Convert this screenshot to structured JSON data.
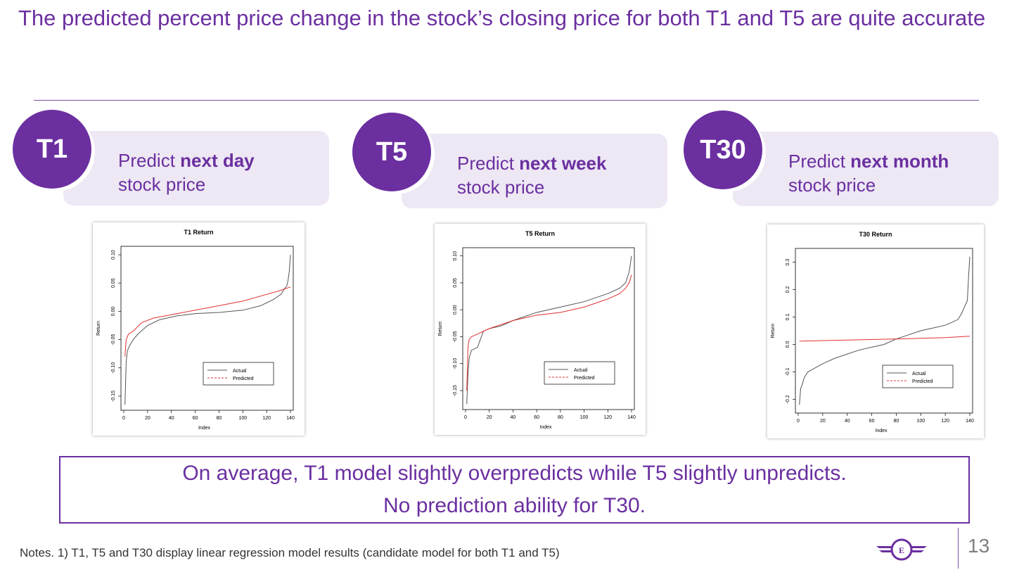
{
  "title": "The predicted percent price change in the stock’s closing price for both T1 and T5 are quite accurate",
  "cards": [
    {
      "badge": "T1",
      "prefix": "Predict ",
      "bold": "next day",
      "rest": "stock price"
    },
    {
      "badge": "T5",
      "prefix": "Predict ",
      "bold": "next week",
      "rest": "stock price"
    },
    {
      "badge": "T30",
      "prefix": "Predict ",
      "bold": "next month",
      "rest": "stock price"
    }
  ],
  "chart_data": [
    {
      "type": "line",
      "title": "T1 Return",
      "xlabel": "Index",
      "ylabel": "Return",
      "xlim": [
        0,
        140
      ],
      "ylim": [
        -0.17,
        0.11
      ],
      "xticks": [
        0,
        20,
        40,
        60,
        80,
        100,
        120,
        140
      ],
      "yticks": [
        -0.15,
        -0.1,
        -0.05,
        0.0,
        0.05,
        0.1
      ],
      "ytick_labels": [
        "-0.15",
        "-0.10",
        "-0.05",
        "0.00",
        "0.05",
        "0.10"
      ],
      "legend": [
        "Actual",
        "Predicted"
      ],
      "legend_position": "bottom-right",
      "series": [
        {
          "name": "Actual",
          "color": "#555555",
          "dash": false,
          "x": [
            1,
            2,
            3,
            5,
            8,
            12,
            20,
            30,
            45,
            60,
            80,
            100,
            115,
            125,
            132,
            135,
            137,
            138,
            139,
            140
          ],
          "y": [
            -0.165,
            -0.09,
            -0.07,
            -0.06,
            -0.05,
            -0.04,
            -0.025,
            -0.015,
            -0.008,
            -0.004,
            -0.002,
            0.002,
            0.01,
            0.02,
            0.03,
            0.04,
            0.045,
            0.055,
            0.07,
            0.1
          ]
        },
        {
          "name": "Predicted",
          "color": "#e03030",
          "dash": true,
          "x": [
            1,
            2,
            4,
            8,
            15,
            25,
            40,
            60,
            80,
            100,
            120,
            130,
            140
          ],
          "y": [
            -0.08,
            -0.05,
            -0.04,
            -0.035,
            -0.02,
            -0.012,
            -0.006,
            0.002,
            0.01,
            0.018,
            0.03,
            0.036,
            0.043
          ]
        }
      ]
    },
    {
      "type": "line",
      "title": "T5 Return",
      "xlabel": "Index",
      "ylabel": "Return",
      "xlim": [
        0,
        140
      ],
      "ylim": [
        -0.18,
        0.11
      ],
      "xticks": [
        0,
        20,
        40,
        60,
        80,
        100,
        120,
        140
      ],
      "yticks": [
        -0.15,
        -0.1,
        -0.05,
        0.0,
        0.05,
        0.1
      ],
      "ytick_labels": [
        "-0.15",
        "-0.10",
        "-0.05",
        "0.00",
        "0.05",
        "0.10"
      ],
      "legend": [
        "Actual",
        "Predicted"
      ],
      "legend_position": "bottom-right",
      "series": [
        {
          "name": "Actual",
          "color": "#555555",
          "dash": false,
          "x": [
            1,
            2,
            3,
            5,
            10,
            15,
            20,
            30,
            40,
            60,
            80,
            100,
            120,
            130,
            135,
            138,
            140
          ],
          "y": [
            -0.175,
            -0.12,
            -0.09,
            -0.075,
            -0.07,
            -0.04,
            -0.035,
            -0.03,
            -0.02,
            -0.005,
            0.005,
            0.015,
            0.03,
            0.04,
            0.05,
            0.07,
            0.1
          ]
        },
        {
          "name": "Predicted",
          "color": "#e03030",
          "dash": true,
          "x": [
            1,
            2,
            3,
            5,
            10,
            20,
            40,
            60,
            80,
            100,
            120,
            130,
            135,
            138,
            140
          ],
          "y": [
            -0.15,
            -0.07,
            -0.055,
            -0.05,
            -0.045,
            -0.035,
            -0.02,
            -0.01,
            -0.005,
            0.005,
            0.02,
            0.03,
            0.04,
            0.05,
            0.065
          ]
        }
      ]
    },
    {
      "type": "line",
      "title": "T30 Return",
      "xlabel": "Index",
      "ylabel": "Return",
      "xlim": [
        0,
        140
      ],
      "ylim": [
        -0.24,
        0.34
      ],
      "xticks": [
        0,
        20,
        40,
        60,
        80,
        100,
        120,
        140
      ],
      "yticks": [
        -0.2,
        -0.1,
        0.0,
        0.1,
        0.2,
        0.3
      ],
      "ytick_labels": [
        "-0.2",
        "-0.1",
        "0.0",
        "0.1",
        "0.2",
        "0.3"
      ],
      "legend": [
        "Actual",
        "Predicted"
      ],
      "legend_position": "bottom-right",
      "series": [
        {
          "name": "Actual",
          "color": "#555555",
          "dash": false,
          "x": [
            1,
            2,
            3,
            5,
            8,
            12,
            20,
            30,
            40,
            50,
            60,
            70,
            80,
            90,
            100,
            110,
            120,
            125,
            130,
            133,
            136,
            138,
            139,
            140
          ],
          "y": [
            -0.22,
            -0.16,
            -0.15,
            -0.12,
            -0.1,
            -0.09,
            -0.07,
            -0.05,
            -0.035,
            -0.02,
            -0.01,
            0.0,
            0.02,
            0.035,
            0.05,
            0.06,
            0.07,
            0.08,
            0.09,
            0.11,
            0.14,
            0.16,
            0.25,
            0.32
          ]
        },
        {
          "name": "Predicted",
          "color": "#e03030",
          "dash": true,
          "x": [
            1,
            40,
            80,
            120,
            140
          ],
          "y": [
            0.012,
            0.016,
            0.02,
            0.025,
            0.03
          ]
        }
      ]
    }
  ],
  "summary": {
    "line1": "On average, T1 model slightly overpredicts while T5 slightly unpredicts.",
    "line2": "No prediction ability for T30."
  },
  "notes": "Notes. 1) T1, T5  and T30 display linear regression model results (candidate model for both T1 and T5)",
  "logo_letter": "E",
  "page_number": "13",
  "colors": {
    "accent": "#6b2fa0",
    "card": "#ede8f4"
  }
}
